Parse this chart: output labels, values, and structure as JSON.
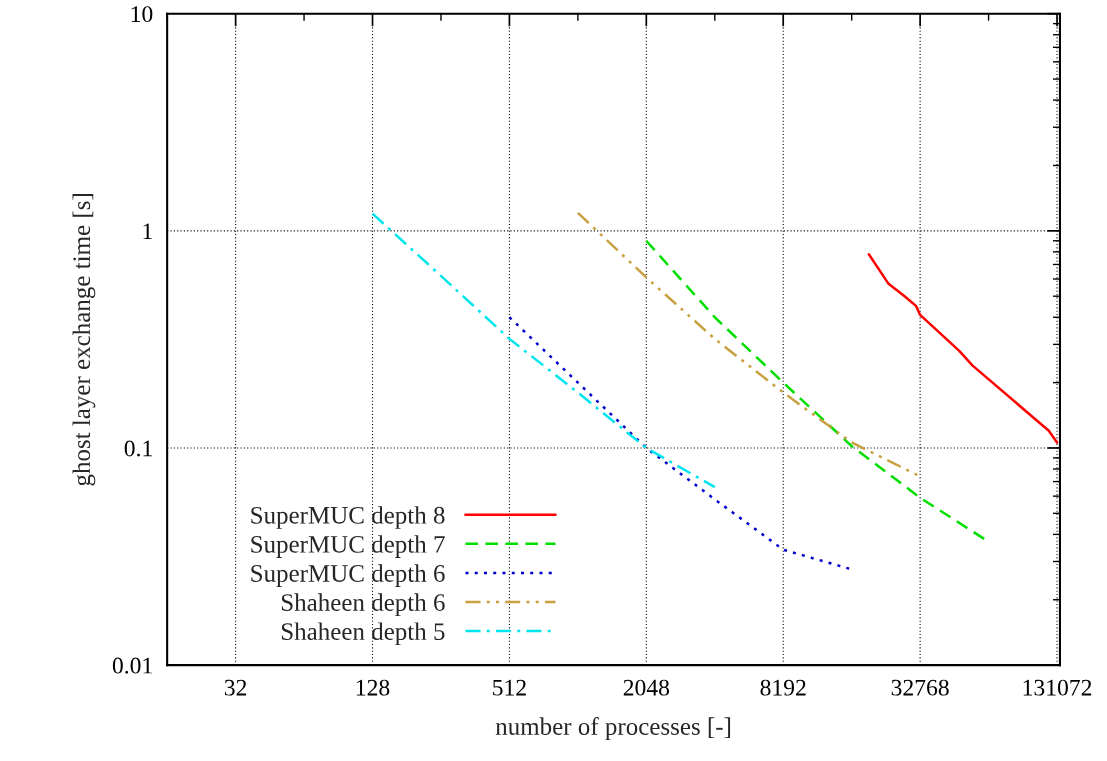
{
  "chart_data": {
    "type": "line",
    "xlabel": "number of processes [-]",
    "ylabel": "ghost layer exchange time [s]",
    "log": "xy",
    "grid": true,
    "legend": "bottom left",
    "xlim": [
      16,
      135000
    ],
    "xticks": [
      32,
      128,
      512,
      2048,
      8192,
      32768,
      131072
    ],
    "ylim": [
      0.01,
      10
    ],
    "yticks": [
      0.01,
      0.1,
      1,
      10
    ],
    "series": [
      {
        "name": "SuperMUC depth 8",
        "color": "#ff0000",
        "line_style": "solid",
        "x": [
          19500,
          23800,
          28000,
          31500,
          32768,
          48700,
          55600,
          120600,
          131072
        ],
        "values": [
          0.78,
          0.57,
          0.5,
          0.45,
          0.41,
          0.28,
          0.24,
          0.12,
          0.106
        ]
      },
      {
        "name": "SuperMUC depth 7",
        "color": "#00dd00",
        "line_style": "dashed",
        "x": [
          2048,
          4096,
          8192,
          16384,
          32768,
          65536
        ],
        "values": [
          0.9,
          0.4,
          0.2,
          0.102,
          0.059,
          0.037
        ]
      },
      {
        "name": "SuperMUC depth 6",
        "color": "#0000cc",
        "line_style": "dotted",
        "x": [
          512,
          1024,
          2048,
          4096,
          8192,
          16384
        ],
        "values": [
          0.4,
          0.2,
          0.1,
          0.058,
          0.034,
          0.0276
        ]
      },
      {
        "name": "Shaheen depth 6",
        "color": "#c8a040",
        "line_style": "dashdotdot",
        "x": [
          1024,
          2048,
          4096,
          8192,
          16384,
          32768
        ],
        "values": [
          1.21,
          0.61,
          0.318,
          0.18,
          0.106,
          0.074
        ]
      },
      {
        "name": "Shaheen depth 5",
        "color": "#00e5ee",
        "line_style": "dashdot",
        "x": [
          128,
          256,
          512,
          1024,
          2048,
          4096
        ],
        "values": [
          1.2,
          0.62,
          0.318,
          0.18,
          0.1,
          0.066
        ]
      }
    ]
  }
}
